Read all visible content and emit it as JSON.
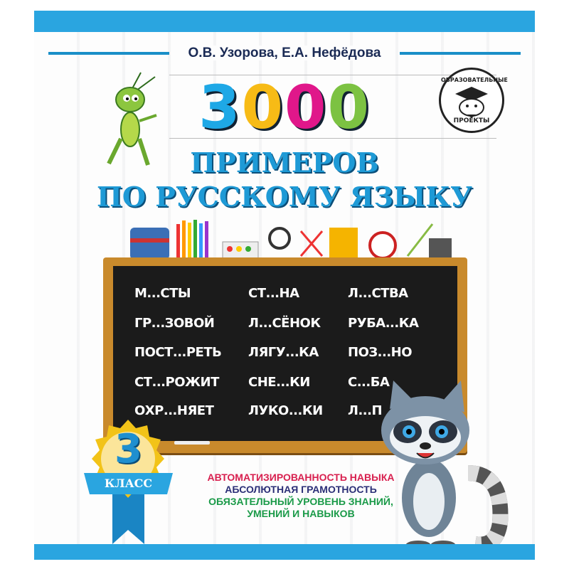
{
  "authors": "О.В. Узорова, Е.А. Нефёдова",
  "number": [
    "3",
    "0",
    "0",
    "0"
  ],
  "number_colors": [
    "#1ea8e6",
    "#f7bb16",
    "#e0178a",
    "#7cc242"
  ],
  "title_line1": "ПРИМЕРОВ",
  "title_line2": "ПО РУССКОМУ ЯЗЫКУ",
  "publisher_logo": {
    "top": "ОБРАЗОВАТЕЛЬНЫЕ",
    "bottom": "ПРОЕКТЫ"
  },
  "chalkboard": {
    "columns": [
      [
        "М...СТЫ",
        "ГР...ЗОВОЙ",
        "ПОСТ...РЕТЬ",
        "СТ...РОЖИТ",
        "ОХР...НЯЕТ"
      ],
      [
        "СТ...НА",
        "Л...СЁНОК",
        "ЛЯГУ...КА",
        "СНЕ...КИ",
        "ЛУКО...КИ"
      ],
      [
        "Л...СТВА",
        "РУБА...КА",
        "ПОЗ...НО",
        "С...БА",
        "Л...П"
      ]
    ]
  },
  "grade_badge": {
    "number": "3",
    "label": "КЛАСС"
  },
  "features": [
    "АВТОМАТИЗИРОВАННОСТЬ НАВЫКА",
    "АБСОЛЮТНАЯ ГРАМОТНОСТЬ",
    "ОБЯЗАТЕЛЬНЫЙ УРОВЕНЬ ЗНАНИЙ,",
    "УМЕНИЙ И НАВЫКОВ"
  ],
  "colors": {
    "band": "#2aa5e0",
    "title": "#1e9ad6",
    "board": "#1b1b1b",
    "frame": "#c98a2c"
  }
}
